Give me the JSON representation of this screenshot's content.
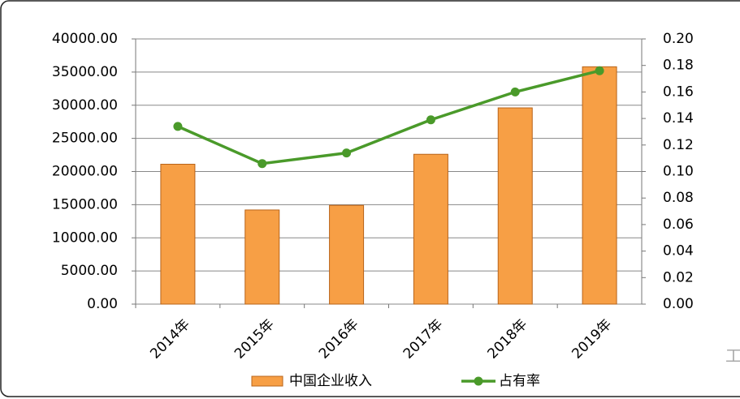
{
  "chart_data": {
    "type": "bar_line",
    "categories": [
      "2014年",
      "2015年",
      "2016年",
      "2017年",
      "2018年",
      "2019年"
    ],
    "series": [
      {
        "name": "中国企业收入",
        "type": "bar",
        "color": "#f79f45",
        "values": [
          21100,
          14200,
          14900,
          22600,
          29600,
          35800
        ]
      },
      {
        "name": "占有率",
        "type": "line",
        "axis": "y2",
        "color": "#4a9a2a",
        "values": [
          0.134,
          0.106,
          0.114,
          0.139,
          0.16,
          0.176
        ]
      }
    ],
    "ylim": [
      0,
      40000
    ],
    "yticks": [
      {
        "value": 0,
        "label": "0.00"
      },
      {
        "value": 5000,
        "label": "5000.00"
      },
      {
        "value": 10000,
        "label": "10000.00"
      },
      {
        "value": 15000,
        "label": "15000.00"
      },
      {
        "value": 20000,
        "label": "20000.00"
      },
      {
        "value": 25000,
        "label": "25000.00"
      },
      {
        "value": 30000,
        "label": "30000.00"
      },
      {
        "value": 35000,
        "label": "35000.00"
      },
      {
        "value": 40000,
        "label": "40000.00"
      }
    ],
    "y2lim": [
      0,
      0.2
    ],
    "y2ticks": [
      {
        "value": 0,
        "label": "0.00"
      },
      0.02,
      0.04,
      0.06,
      0.08,
      {
        "value": 0.1,
        "label": "0.10"
      },
      0.12,
      0.14,
      0.16,
      0.18,
      {
        "value": 0.2,
        "label": "0.20"
      }
    ],
    "grid": true,
    "legend": "bottom",
    "watermark": "工"
  }
}
